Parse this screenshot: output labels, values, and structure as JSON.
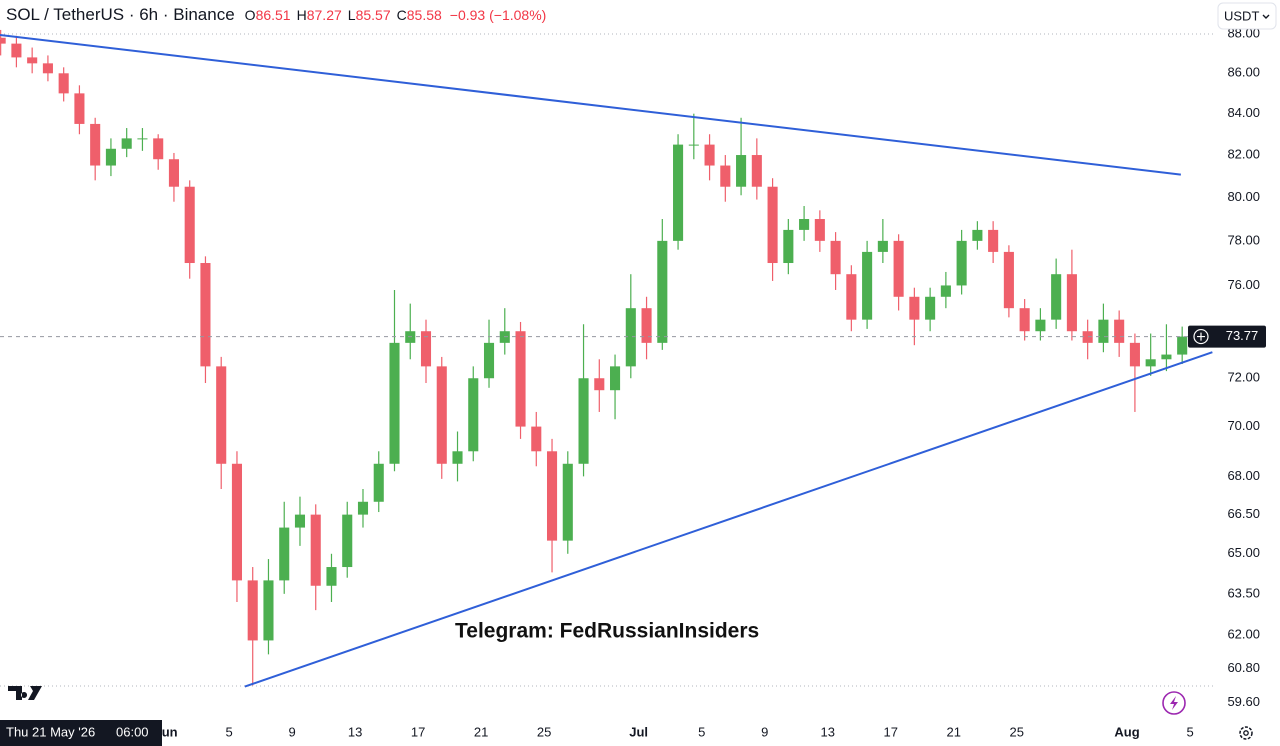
{
  "header": {
    "symbol": "SOL / TetherUS · 6h · Binance",
    "fields": [
      {
        "key": "O",
        "value": "86.51"
      },
      {
        "key": "H",
        "value": "87.27"
      },
      {
        "key": "L",
        "value": "85.57"
      },
      {
        "key": "C",
        "value": "85.58"
      }
    ],
    "change": "−0.93 (−1.08%)",
    "currency": "USDT"
  },
  "crosshair": {
    "date": "Thu 21 May '26",
    "time": "06:00"
  },
  "watermark": "Telegram: FedRussianInsiders",
  "chart_data": {
    "type": "candlestick",
    "log_scale": true,
    "up_color": "#4caf50",
    "down_color": "#ef5f6b",
    "x": [
      "2026-05-21",
      "2026-05-22",
      "2026-05-23",
      "2026-05-24",
      "2026-05-25",
      "2026-05-26",
      "2026-05-27",
      "2026-05-28",
      "2026-05-29",
      "2026-05-30",
      "2026-05-31",
      "2026-06-01",
      "2026-06-02",
      "2026-06-03",
      "2026-06-04",
      "2026-06-05",
      "2026-06-06",
      "2026-06-07",
      "2026-06-08",
      "2026-06-09",
      "2026-06-10",
      "2026-06-11",
      "2026-06-12",
      "2026-06-13",
      "2026-06-14",
      "2026-06-15",
      "2026-06-16",
      "2026-06-17",
      "2026-06-18",
      "2026-06-19",
      "2026-06-20",
      "2026-06-21",
      "2026-06-22",
      "2026-06-23",
      "2026-06-24",
      "2026-06-25",
      "2026-06-26",
      "2026-06-27",
      "2026-06-28",
      "2026-06-29",
      "2026-06-30",
      "2026-07-01",
      "2026-07-02",
      "2026-07-03",
      "2026-07-04",
      "2026-07-05",
      "2026-07-06",
      "2026-07-07",
      "2026-07-08",
      "2026-07-09",
      "2026-07-10",
      "2026-07-11",
      "2026-07-12",
      "2026-07-13",
      "2026-07-14",
      "2026-07-15",
      "2026-07-16",
      "2026-07-17",
      "2026-07-18",
      "2026-07-19",
      "2026-07-20",
      "2026-07-21",
      "2026-07-22",
      "2026-07-23",
      "2026-07-24",
      "2026-07-25",
      "2026-07-26",
      "2026-07-27",
      "2026-07-28",
      "2026-07-29",
      "2026-07-30",
      "2026-07-31",
      "2026-08-01",
      "2026-08-02",
      "2026-08-03",
      "2026-08-04"
    ],
    "ohlc": [
      [
        87.8,
        88.2,
        86.9,
        87.5
      ],
      [
        87.5,
        87.9,
        86.3,
        86.8
      ],
      [
        86.8,
        87.3,
        86.0,
        86.5
      ],
      [
        86.5,
        86.9,
        85.6,
        86.0
      ],
      [
        86.0,
        86.3,
        84.6,
        85.0
      ],
      [
        85.0,
        85.4,
        83.0,
        83.5
      ],
      [
        83.5,
        83.8,
        80.8,
        81.5
      ],
      [
        81.5,
        82.8,
        81.0,
        82.3
      ],
      [
        82.3,
        83.3,
        81.9,
        82.8
      ],
      [
        82.8,
        83.3,
        82.2,
        82.8
      ],
      [
        82.8,
        83.0,
        81.3,
        81.8
      ],
      [
        81.8,
        82.1,
        79.8,
        80.5
      ],
      [
        80.5,
        80.8,
        76.3,
        77.0
      ],
      [
        77.0,
        77.3,
        71.8,
        72.5
      ],
      [
        72.5,
        72.9,
        67.5,
        68.5
      ],
      [
        68.5,
        69.0,
        63.2,
        64.0
      ],
      [
        64.0,
        64.5,
        60.2,
        61.8
      ],
      [
        61.8,
        64.8,
        61.3,
        64.0
      ],
      [
        64.0,
        67.0,
        63.5,
        66.0
      ],
      [
        66.0,
        67.2,
        65.3,
        66.5
      ],
      [
        66.5,
        66.9,
        62.9,
        63.8
      ],
      [
        63.8,
        65.0,
        63.2,
        64.5
      ],
      [
        64.5,
        67.0,
        64.1,
        66.5
      ],
      [
        66.5,
        67.5,
        66.0,
        67.0
      ],
      [
        67.0,
        69.0,
        66.6,
        68.5
      ],
      [
        68.5,
        75.8,
        68.2,
        73.5
      ],
      [
        73.5,
        75.2,
        72.8,
        74.0
      ],
      [
        74.0,
        74.5,
        71.8,
        72.5
      ],
      [
        72.5,
        72.9,
        67.9,
        68.5
      ],
      [
        68.5,
        69.8,
        67.8,
        69.0
      ],
      [
        69.0,
        72.5,
        68.6,
        72.0
      ],
      [
        72.0,
        74.5,
        71.6,
        73.5
      ],
      [
        73.5,
        75.0,
        73.0,
        74.0
      ],
      [
        74.0,
        74.4,
        69.5,
        70.0
      ],
      [
        70.0,
        70.6,
        68.4,
        69.0
      ],
      [
        69.0,
        69.5,
        64.3,
        65.5
      ],
      [
        65.5,
        69.0,
        65.0,
        68.5
      ],
      [
        68.5,
        74.3,
        68.0,
        72.0
      ],
      [
        72.0,
        72.8,
        70.6,
        71.5
      ],
      [
        71.5,
        73.0,
        70.3,
        72.5
      ],
      [
        72.5,
        76.5,
        72.0,
        75.0
      ],
      [
        75.0,
        75.5,
        72.8,
        73.5
      ],
      [
        73.5,
        79.0,
        73.2,
        78.0
      ],
      [
        78.0,
        83.0,
        77.6,
        82.5
      ],
      [
        82.5,
        84.0,
        81.8,
        82.5
      ],
      [
        82.5,
        83.0,
        80.8,
        81.5
      ],
      [
        81.5,
        82.0,
        79.8,
        80.5
      ],
      [
        80.5,
        83.8,
        80.1,
        82.0
      ],
      [
        82.0,
        82.8,
        79.9,
        80.5
      ],
      [
        80.5,
        80.9,
        76.2,
        77.0
      ],
      [
        77.0,
        79.0,
        76.5,
        78.5
      ],
      [
        78.5,
        79.6,
        78.0,
        79.0
      ],
      [
        79.0,
        79.4,
        77.5,
        78.0
      ],
      [
        78.0,
        78.4,
        75.8,
        76.5
      ],
      [
        76.5,
        76.9,
        74.0,
        74.5
      ],
      [
        74.5,
        78.0,
        74.1,
        77.5
      ],
      [
        77.5,
        79.0,
        77.0,
        78.0
      ],
      [
        78.0,
        78.3,
        74.9,
        75.5
      ],
      [
        75.5,
        75.9,
        73.4,
        74.5
      ],
      [
        74.5,
        75.9,
        74.0,
        75.5
      ],
      [
        75.5,
        76.6,
        75.0,
        76.0
      ],
      [
        76.0,
        78.5,
        75.6,
        78.0
      ],
      [
        78.0,
        78.9,
        77.6,
        78.5
      ],
      [
        78.5,
        78.9,
        77.0,
        77.5
      ],
      [
        77.5,
        77.8,
        74.6,
        75.0
      ],
      [
        75.0,
        75.4,
        73.6,
        74.0
      ],
      [
        74.0,
        75.0,
        73.6,
        74.5
      ],
      [
        74.5,
        77.2,
        74.1,
        76.5
      ],
      [
        76.5,
        77.6,
        73.6,
        74.0
      ],
      [
        74.0,
        74.5,
        72.8,
        73.5
      ],
      [
        73.5,
        75.2,
        73.1,
        74.5
      ],
      [
        74.5,
        74.9,
        72.9,
        73.5
      ],
      [
        73.5,
        73.9,
        70.6,
        72.5
      ],
      [
        72.5,
        73.9,
        72.1,
        72.8
      ],
      [
        72.8,
        74.3,
        72.3,
        73.0
      ],
      [
        73.0,
        74.2,
        72.6,
        73.77
      ]
    ],
    "trendlines": [
      {
        "color": "#2f5fd8",
        "points": [
          [
            "2026-05-21 11:00",
            87.94
          ],
          [
            "2026-08-04 10:00",
            81.07
          ]
        ]
      },
      {
        "color": "#2f5fd8",
        "points": [
          [
            "2026-06-06 00:00",
            60.16
          ],
          [
            "2026-08-06 10:00",
            73.1
          ]
        ]
      }
    ],
    "xlim": [
      "2026-05-21 11:00",
      "2026-08-06 14:00"
    ],
    "xticks": [
      {
        "value": "2026-06-01",
        "label": "Jun"
      },
      {
        "value": "2026-06-05",
        "label": "5"
      },
      {
        "value": "2026-06-09",
        "label": "9"
      },
      {
        "value": "2026-06-13",
        "label": "13"
      },
      {
        "value": "2026-06-17",
        "label": "17"
      },
      {
        "value": "2026-06-21",
        "label": "21"
      },
      {
        "value": "2026-06-25",
        "label": "25"
      },
      {
        "value": "2026-07-01",
        "label": "Jul"
      },
      {
        "value": "2026-07-05",
        "label": "5"
      },
      {
        "value": "2026-07-09",
        "label": "9"
      },
      {
        "value": "2026-07-13",
        "label": "13"
      },
      {
        "value": "2026-07-17",
        "label": "17"
      },
      {
        "value": "2026-07-21",
        "label": "21"
      },
      {
        "value": "2026-07-25",
        "label": "25"
      },
      {
        "value": "2026-08-01",
        "label": "Aug"
      },
      {
        "value": "2026-08-05",
        "label": "5"
      }
    ],
    "ylim": [
      59,
      88.3
    ],
    "yticks": [
      {
        "value": 88,
        "label": "88.00"
      },
      {
        "value": 86,
        "label": "86.00"
      },
      {
        "value": 84,
        "label": "84.00"
      },
      {
        "value": 82,
        "label": "82.00"
      },
      {
        "value": 80,
        "label": "80.00"
      },
      {
        "value": 78,
        "label": "78.00"
      },
      {
        "value": 76,
        "label": "76.00"
      },
      {
        "value": 72,
        "label": "72.00"
      },
      {
        "value": 70,
        "label": "70.00"
      },
      {
        "value": 68,
        "label": "68.00"
      },
      {
        "value": 66.5,
        "label": "66.50"
      },
      {
        "value": 65,
        "label": "65.00"
      },
      {
        "value": 63.5,
        "label": "63.50"
      },
      {
        "value": 62,
        "label": "62.00"
      },
      {
        "value": 60.8,
        "label": "60.80"
      },
      {
        "value": 59.6,
        "label": "59.60"
      }
    ]
  }
}
